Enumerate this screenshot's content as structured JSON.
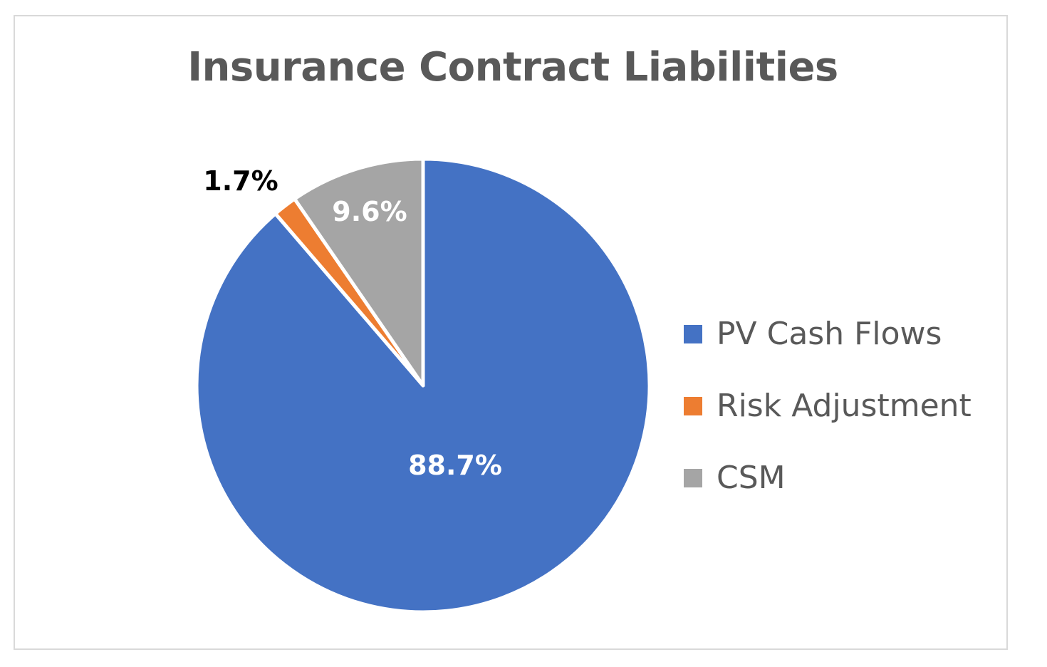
{
  "chart_data": {
    "type": "pie",
    "title": "Insurance Contract Liabilities",
    "categories": [
      "PV Cash Flows",
      "Risk Adjustment",
      "CSM"
    ],
    "values": [
      88.7,
      1.7,
      9.6
    ],
    "value_labels": [
      "88.7%",
      "1.7%",
      "9.6%"
    ],
    "colors": [
      "#4472c4",
      "#ed7d31",
      "#a5a5a5"
    ],
    "label_colors": [
      "#ffffff",
      "#000000",
      "#ffffff"
    ],
    "start_angle_deg": 0,
    "direction": "clockwise",
    "legend_position": "right"
  }
}
